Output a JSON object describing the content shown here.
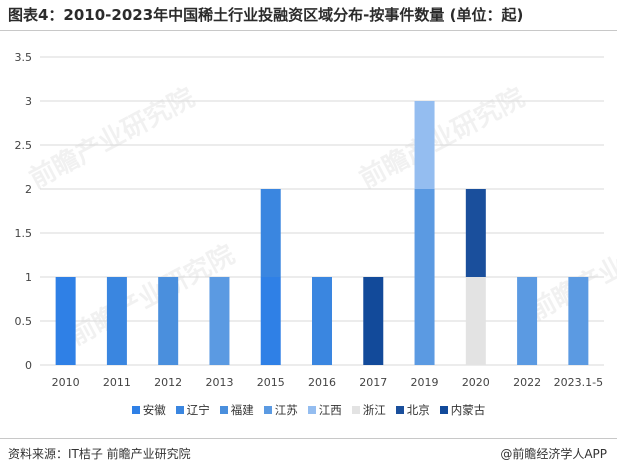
{
  "header": {
    "title": "图表4：2010-2023年中国稀土行业投融资区域分布-按事件数量 (单位：起)"
  },
  "footer": {
    "source": "资料来源：IT桔子 前瞻产业研究院",
    "brand": "@前瞻经济学人APP"
  },
  "watermarks": [
    "前瞻产业研究院",
    "前瞻产业研究院",
    "前瞻产业研究院",
    "前瞻产业研究院"
  ],
  "chart_data": {
    "type": "bar",
    "stacked": true,
    "categories": [
      "2010",
      "2011",
      "2012",
      "2013",
      "2015",
      "2016",
      "2017",
      "2019",
      "2020",
      "2022",
      "2023.1-5"
    ],
    "series": [
      {
        "name": "安徽",
        "color": "#2f80e6",
        "values": [
          1,
          0,
          0,
          0,
          1,
          0,
          0,
          0,
          0,
          0,
          0
        ]
      },
      {
        "name": "辽宁",
        "color": "#3a86e0",
        "values": [
          0,
          1,
          0,
          0,
          1,
          1,
          0,
          0,
          0,
          0,
          0
        ]
      },
      {
        "name": "福建",
        "color": "#4a8fdd",
        "values": [
          0,
          0,
          1,
          0,
          0,
          0,
          0,
          0,
          0,
          0,
          0
        ]
      },
      {
        "name": "江苏",
        "color": "#5b9ae2",
        "values": [
          0,
          0,
          0,
          1,
          0,
          0,
          0,
          2,
          0,
          1,
          1
        ]
      },
      {
        "name": "江西",
        "color": "#94bdf0",
        "values": [
          0,
          0,
          0,
          0,
          0,
          0,
          0,
          1,
          0,
          0,
          0
        ]
      },
      {
        "name": "浙江",
        "color": "#e3e3e3",
        "values": [
          0,
          0,
          0,
          0,
          0,
          0,
          0,
          0,
          1,
          0,
          0
        ]
      },
      {
        "name": "北京",
        "color": "#1a4f9c",
        "values": [
          0,
          0,
          0,
          0,
          0,
          0,
          0,
          0,
          1,
          0,
          0
        ]
      },
      {
        "name": "内蒙古",
        "color": "#124a9a",
        "values": [
          0,
          0,
          0,
          0,
          0,
          0,
          1,
          0,
          0,
          0,
          0
        ]
      }
    ],
    "yticks": [
      "0",
      "0.5",
      "1",
      "1.5",
      "2",
      "2.5",
      "3",
      "3.5"
    ],
    "ylim": [
      0,
      3.5
    ],
    "grid": true,
    "legend_position": "bottom"
  }
}
